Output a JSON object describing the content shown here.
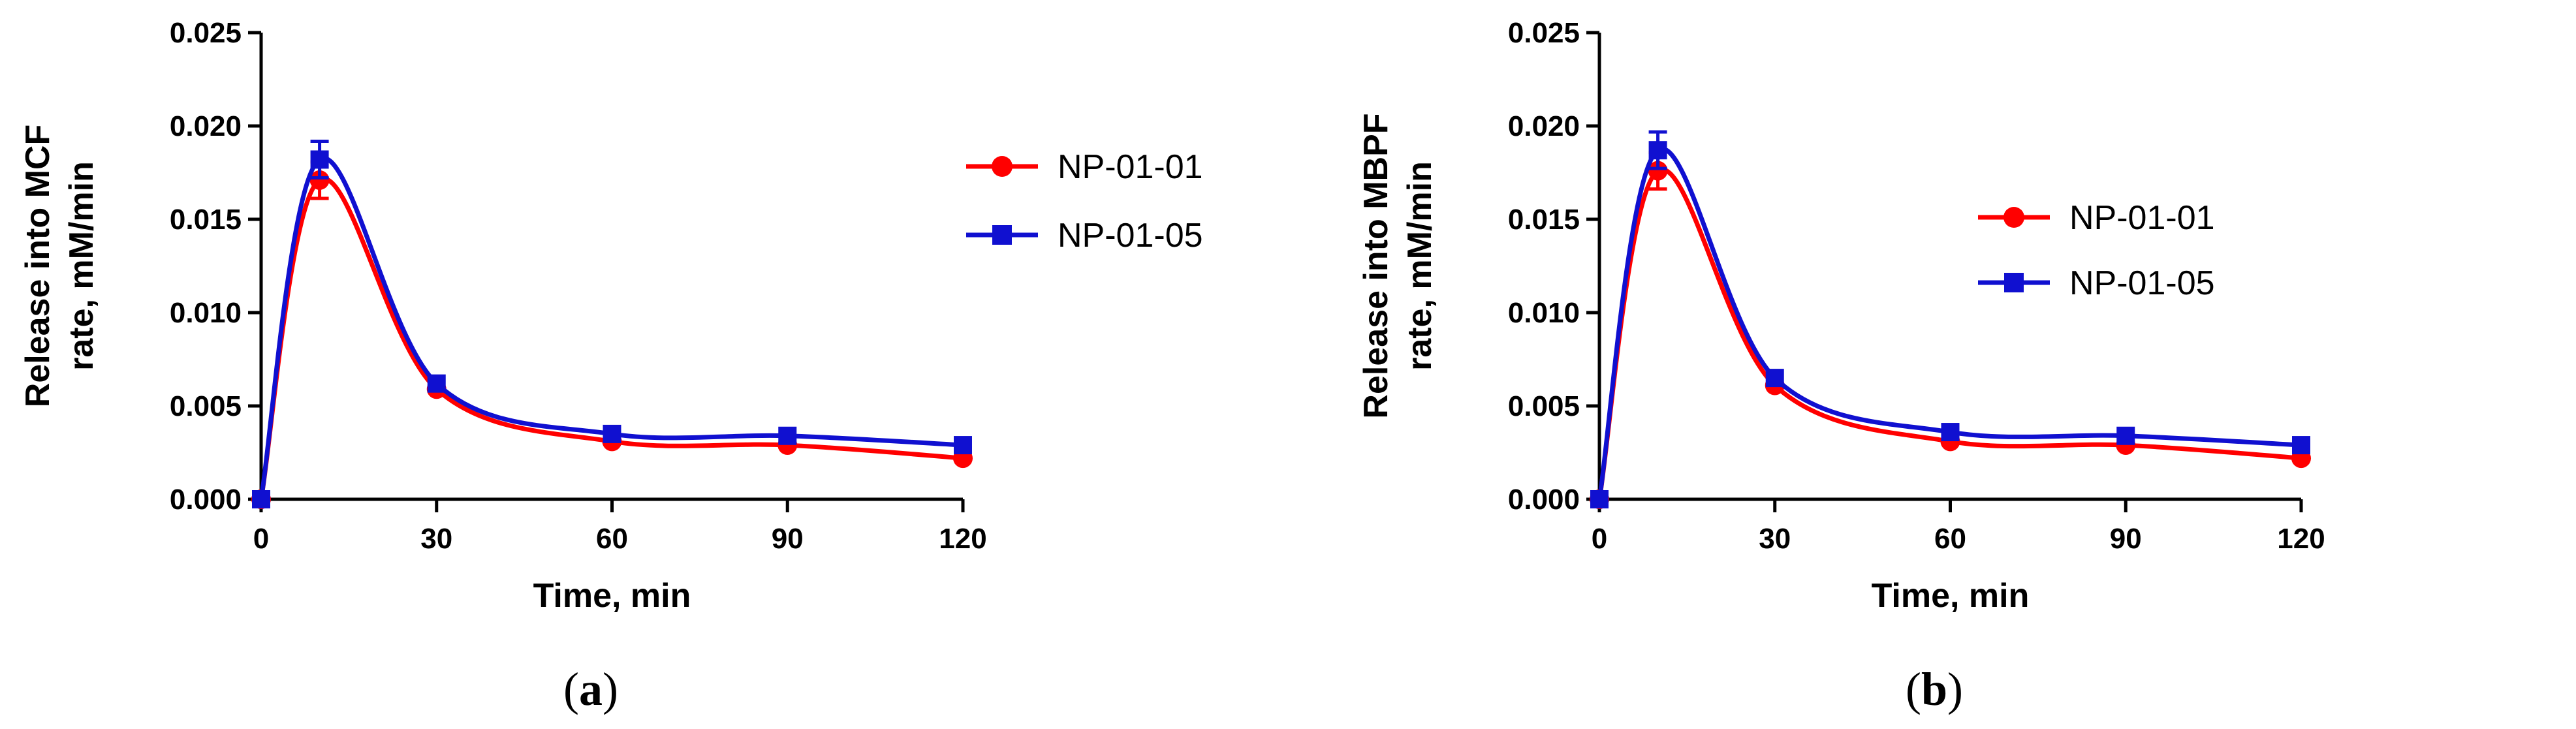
{
  "chart_data": [
    {
      "type": "line",
      "panel_label": "a",
      "xlabel": "Time, min",
      "ylabel_lines": [
        "Release into MCF",
        "rate, mM/min"
      ],
      "xlim": [
        0,
        120
      ],
      "ylim": [
        0,
        0.025
      ],
      "x_ticks": [
        "0",
        "30",
        "60",
        "90",
        "120"
      ],
      "y_ticks": [
        "0.000",
        "0.005",
        "0.010",
        "0.015",
        "0.020",
        "0.025"
      ],
      "x": [
        0,
        10,
        30,
        60,
        90,
        120
      ],
      "series": [
        {
          "name": "NP-01-01",
          "color": "#ff0000",
          "marker": "circle",
          "values": [
            0.0,
            0.0171,
            0.0059,
            0.0031,
            0.0029,
            0.0022
          ]
        },
        {
          "name": "NP-01-05",
          "color": "#1010d0",
          "marker": "square",
          "values": [
            0.0,
            0.0182,
            0.0062,
            0.0035,
            0.0034,
            0.0029
          ]
        }
      ],
      "legend_position": "right"
    },
    {
      "type": "line",
      "panel_label": "b",
      "xlabel": "Time, min",
      "ylabel_lines": [
        "Release into MBPF",
        "rate, mM/min"
      ],
      "xlim": [
        0,
        120
      ],
      "ylim": [
        0,
        0.025
      ],
      "x_ticks": [
        "0",
        "30",
        "60",
        "90",
        "120"
      ],
      "y_ticks": [
        "0.000",
        "0.005",
        "0.010",
        "0.015",
        "0.020",
        "0.025"
      ],
      "x": [
        0,
        10,
        30,
        60,
        90,
        120
      ],
      "series": [
        {
          "name": "NP-01-01",
          "color": "#ff0000",
          "marker": "circle",
          "values": [
            0.0,
            0.0176,
            0.0061,
            0.0031,
            0.0029,
            0.0022
          ]
        },
        {
          "name": "NP-01-05",
          "color": "#1010d0",
          "marker": "square",
          "values": [
            0.0,
            0.0187,
            0.0065,
            0.0036,
            0.0034,
            0.0029
          ]
        }
      ],
      "legend_position": "right"
    }
  ],
  "captions": [
    {
      "open": "(",
      "letter": "a",
      "close": ")"
    },
    {
      "open": "(",
      "letter": "b",
      "close": ")"
    }
  ]
}
